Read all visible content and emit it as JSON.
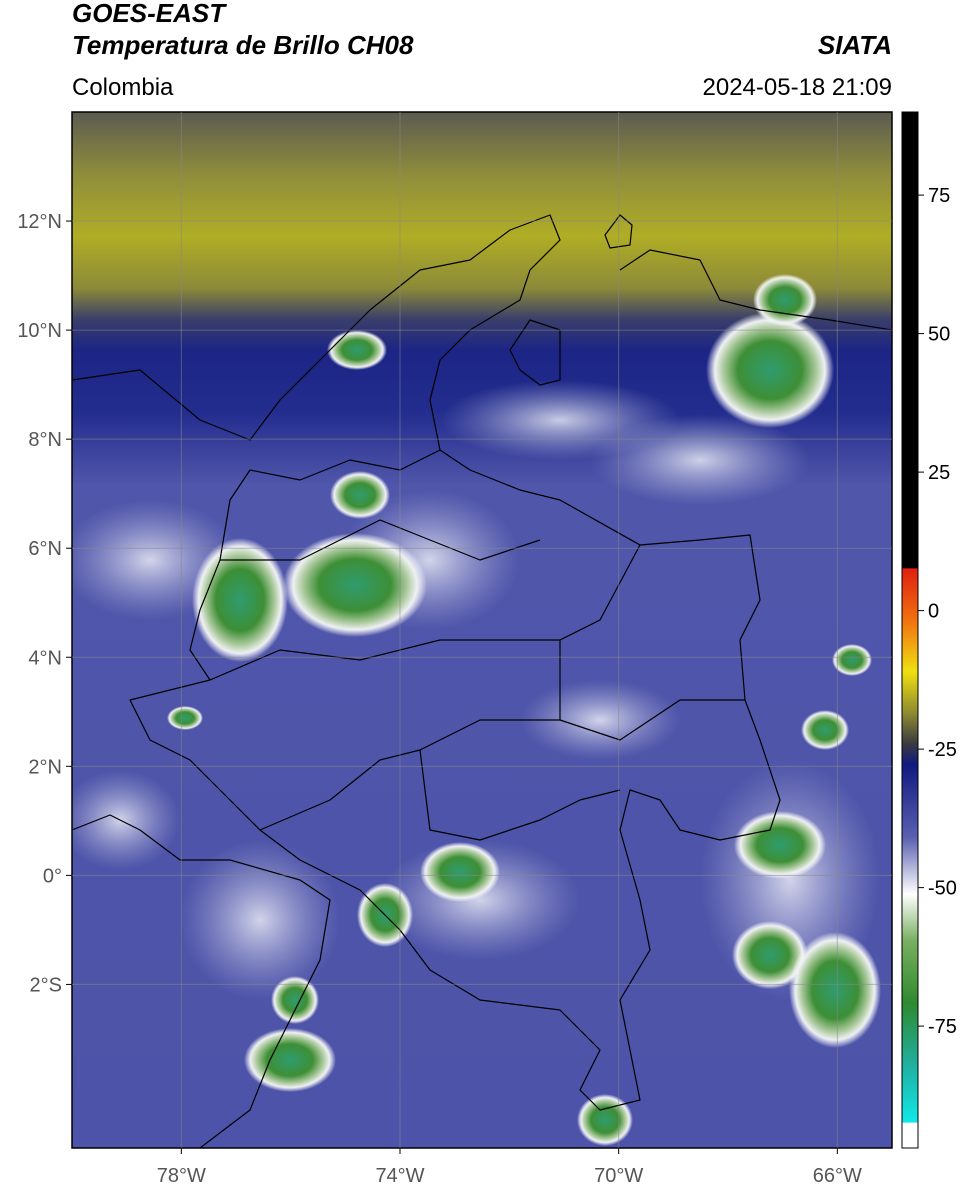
{
  "header": {
    "title": "GOES-EAST",
    "subtitle": "Temperatura de Brillo CH08",
    "source": "SIATA",
    "region": "Colombia",
    "timestamp": "2024-05-18 21:09"
  },
  "map": {
    "xlim": [
      -80,
      -65
    ],
    "ylim": [
      -5,
      14
    ],
    "xticks": [
      {
        "value": -78,
        "label": "78°W"
      },
      {
        "value": -74,
        "label": "74°W"
      },
      {
        "value": -70,
        "label": "70°W"
      },
      {
        "value": -66,
        "label": "66°W"
      }
    ],
    "yticks": [
      {
        "value": 12,
        "label": "12°N"
      },
      {
        "value": 10,
        "label": "10°N"
      },
      {
        "value": 8,
        "label": "8°N"
      },
      {
        "value": 6,
        "label": "6°N"
      },
      {
        "value": 4,
        "label": "4°N"
      },
      {
        "value": 2,
        "label": "2°N"
      },
      {
        "value": 0,
        "label": "0°"
      },
      {
        "value": -2,
        "label": "2°S"
      }
    ],
    "grid": true
  },
  "colorbar": {
    "lim": [
      -97,
      90
    ],
    "ticks": [
      75,
      50,
      25,
      0,
      -25,
      -50,
      -75
    ]
  }
}
